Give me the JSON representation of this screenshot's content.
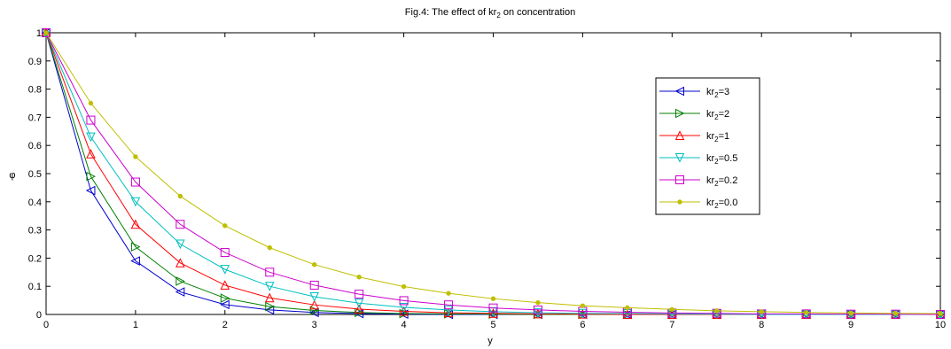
{
  "chart_data": {
    "type": "line",
    "title_prefix": "Fig.4: The effect of kr",
    "title_sub": "2",
    "title_suffix": " on concentration",
    "xlabel": "y",
    "ylabel": "φ",
    "xlim": [
      0,
      10
    ],
    "ylim": [
      0,
      1
    ],
    "xticks": [
      "0",
      "1",
      "2",
      "3",
      "4",
      "5",
      "6",
      "7",
      "8",
      "9",
      "10"
    ],
    "yticks": [
      "0",
      "0.1",
      "0.2",
      "0.3",
      "0.4",
      "0.5",
      "0.6",
      "0.7",
      "0.8",
      "0.9",
      "1"
    ],
    "grid": false,
    "legend_position": "upper-right",
    "x": [
      0,
      0.5,
      1,
      1.5,
      2,
      2.5,
      3,
      3.5,
      4,
      4.5,
      5,
      5.5,
      6,
      6.5,
      7,
      7.5,
      8,
      8.5,
      9,
      9.5,
      10
    ],
    "series": [
      {
        "label_prefix": "kr",
        "label_sub": "2",
        "label_suffix": "=3",
        "color": "#0000cc",
        "marker": "triangle-left",
        "values": [
          1,
          0.44,
          0.19,
          0.08,
          0.035,
          0.016,
          0.007,
          0.003,
          0.001,
          0,
          0,
          0,
          0,
          0,
          0,
          0,
          0,
          0,
          0,
          0,
          0
        ]
      },
      {
        "label_prefix": "kr",
        "label_sub": "2",
        "label_suffix": "=2",
        "color": "#008000",
        "marker": "triangle-right",
        "values": [
          1,
          0.49,
          0.24,
          0.118,
          0.058,
          0.028,
          0.014,
          0.007,
          0.003,
          0.002,
          0.001,
          0,
          0,
          0,
          0,
          0,
          0,
          0,
          0,
          0,
          0
        ]
      },
      {
        "label_prefix": "kr",
        "label_sub": "2",
        "label_suffix": "=1",
        "color": "#ff0000",
        "marker": "triangle-up",
        "values": [
          1,
          0.57,
          0.32,
          0.183,
          0.104,
          0.059,
          0.034,
          0.019,
          0.011,
          0.006,
          0.004,
          0.002,
          0.001,
          0,
          0,
          0,
          0,
          0,
          0,
          0,
          0
        ]
      },
      {
        "label_prefix": "kr",
        "label_sub": "2",
        "label_suffix": "=0.5",
        "color": "#00bfbf",
        "marker": "triangle-down",
        "values": [
          1,
          0.63,
          0.4,
          0.25,
          0.16,
          0.1,
          0.063,
          0.04,
          0.025,
          0.016,
          0.01,
          0.006,
          0.004,
          0.003,
          0.002,
          0.001,
          0,
          0,
          0,
          0,
          0
        ]
      },
      {
        "label_prefix": "kr",
        "label_sub": "2",
        "label_suffix": "=0.2",
        "color": "#cc00cc",
        "marker": "square",
        "values": [
          1,
          0.69,
          0.47,
          0.32,
          0.22,
          0.15,
          0.104,
          0.072,
          0.049,
          0.034,
          0.023,
          0.016,
          0.011,
          0.008,
          0.005,
          0.004,
          0.002,
          0.002,
          0.001,
          0.001,
          0
        ]
      },
      {
        "label_prefix": "kr",
        "label_sub": "2",
        "label_suffix": "=0.0",
        "color": "#bfbf00",
        "marker": "dot",
        "values": [
          1,
          0.75,
          0.56,
          0.42,
          0.315,
          0.237,
          0.177,
          0.133,
          0.099,
          0.075,
          0.056,
          0.042,
          0.031,
          0.024,
          0.018,
          0.013,
          0.01,
          0.007,
          0.005,
          0.004,
          0.003
        ]
      }
    ]
  }
}
